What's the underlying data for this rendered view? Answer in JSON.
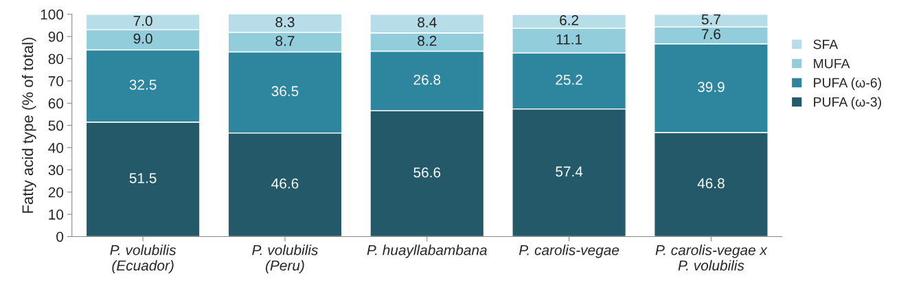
{
  "chart_data": {
    "type": "bar",
    "stacked": true,
    "ylabel": "Fatty acid type (% of total)",
    "categories": [
      "P. volubilis\n(Ecuador)",
      "P. volubilis\n(Peru)",
      "P. huayllabambana",
      "P. carolis-vegae",
      "P. carolis-vegae x\nP. volubilis"
    ],
    "series": [
      {
        "name": "PUFA (ω-3)",
        "color": "#235968",
        "values": [
          51.5,
          46.6,
          56.6,
          57.4,
          46.8
        ]
      },
      {
        "name": "PUFA (ω-6)",
        "color": "#2e869e",
        "values": [
          32.5,
          36.5,
          26.8,
          25.2,
          39.9
        ]
      },
      {
        "name": "MUFA",
        "color": "#92cddc",
        "values": [
          9.0,
          8.7,
          8.2,
          11.1,
          7.6
        ]
      },
      {
        "name": "SFA",
        "color": "#b7dde8",
        "values": [
          7.0,
          8.3,
          8.4,
          6.2,
          5.7
        ]
      }
    ],
    "value_labels": [
      [
        "51.5",
        "46.6",
        "56.6",
        "57.4",
        "46.8"
      ],
      [
        "32.5",
        "36.5",
        "26.8",
        "25.2",
        "39.9"
      ],
      [
        "9.0",
        "8.7",
        "8.2",
        "11.1",
        "7.6"
      ],
      [
        "7.0",
        "8.3",
        "8.4",
        "6.2",
        "5.7"
      ]
    ],
    "ylim": [
      0,
      100
    ],
    "yticks": [
      0,
      10,
      20,
      30,
      40,
      50,
      60,
      70,
      80,
      90,
      100
    ],
    "grid": false,
    "legend": "right"
  }
}
